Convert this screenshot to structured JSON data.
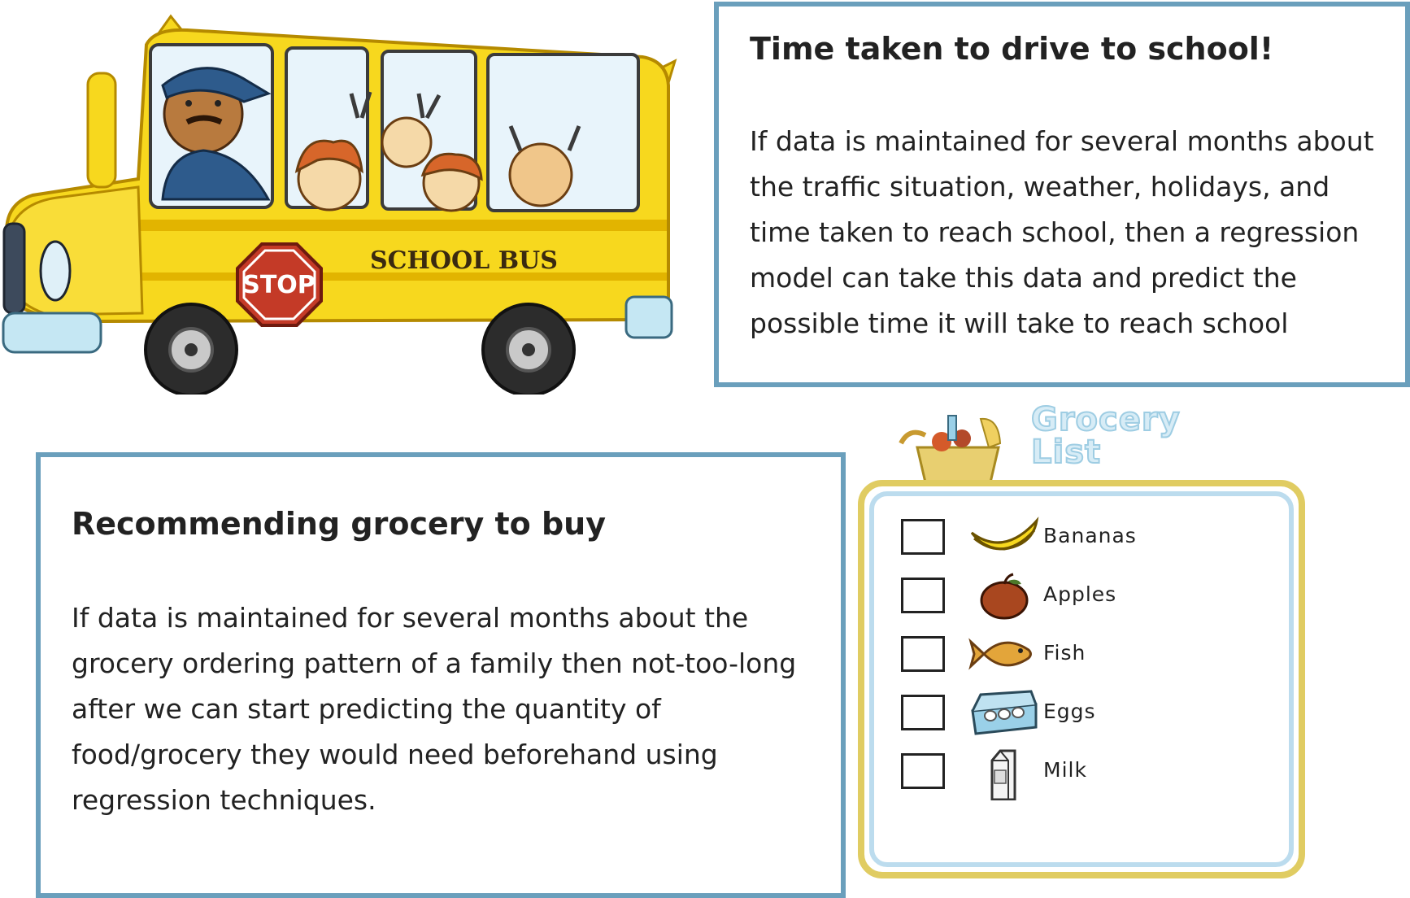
{
  "bus": {
    "stop_sign": "STOP",
    "side_text": "SCHOOL BUS",
    "colors": {
      "body": "#f7d81e",
      "stripe": "#e2b400",
      "stop": "#c43a27"
    }
  },
  "school_card": {
    "title": "Time taken to drive to school!",
    "body": "If data is maintained for several months about the traffic situation, weather, holidays, and time taken to reach school, then a regression model can take this data and predict the possible time it will take to reach school"
  },
  "grocery_card": {
    "title": "Recommending grocery to buy",
    "body": "If data is maintained for several months about the grocery ordering pattern of a family then not-too-long after we can start predicting the quantity of food/grocery they would need beforehand using regression techniques."
  },
  "grocery_list": {
    "title_line1": "Grocery",
    "title_line2": "List",
    "items": [
      {
        "label": "Bananas",
        "icon": "banana-icon",
        "checked": false
      },
      {
        "label": "Apples",
        "icon": "apple-icon",
        "checked": false
      },
      {
        "label": "Fish",
        "icon": "fish-icon",
        "checked": false
      },
      {
        "label": "Eggs",
        "icon": "eggs-icon",
        "checked": false
      },
      {
        "label": "Milk",
        "icon": "milk-icon",
        "checked": false
      }
    ],
    "colors": {
      "frame_outer": "#e0cc62",
      "frame_inner": "#bcdcee",
      "title": "#9ecde3"
    }
  },
  "card_border_color": "#6a9fbc"
}
